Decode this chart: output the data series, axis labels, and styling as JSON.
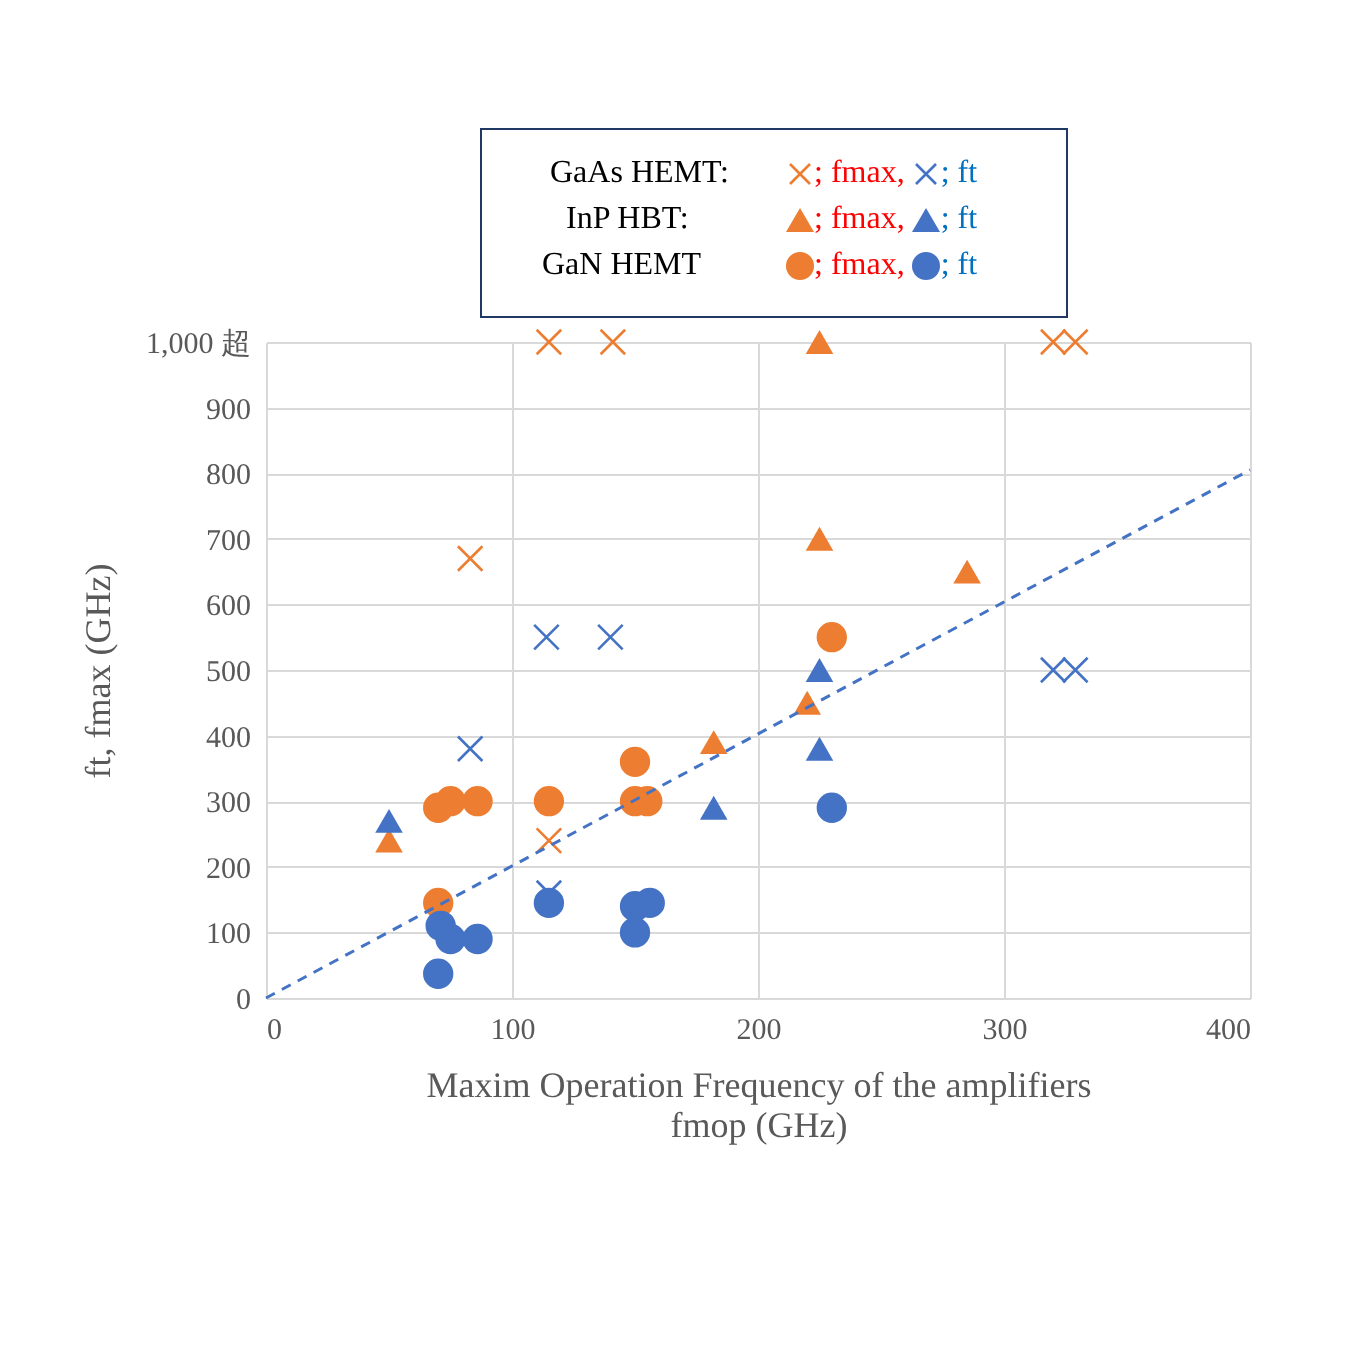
{
  "chart_data": {
    "type": "scatter",
    "xlabel": "Maxim Operation Frequency of the amplifiers\nfmop (GHz)",
    "ylabel": "ft, fmax (GHz)",
    "annotations": [
      "GaAs HEMT:",
      "InP HBT:",
      "GaN HEMT",
      "; fmax,",
      "; ft"
    ],
    "xlim": [
      0,
      400
    ],
    "xticks": [
      0,
      100,
      200,
      300,
      400
    ],
    "ylim": [
      0,
      1000
    ],
    "yticks": [
      0,
      100,
      200,
      300,
      400,
      500,
      600,
      700,
      800,
      900,
      {
        "value": 1000,
        "label": "1,000 超"
      }
    ],
    "grid": true,
    "series": [
      {
        "color": "#ed7d31",
        "marker": "cross",
        "x": [
          115,
          141,
          83,
          115,
          320,
          329
        ],
        "values": [
          1000,
          1000,
          670,
          240,
          1000,
          1000
        ]
      },
      {
        "color": "#4472c4",
        "marker": "cross",
        "x": [
          114,
          140,
          83,
          115,
          320,
          329
        ],
        "values": [
          550,
          550,
          380,
          160,
          500,
          500
        ]
      },
      {
        "color": "#ed7d31",
        "marker": "triangle",
        "x": [
          225,
          225,
          285,
          220,
          182,
          50
        ],
        "values": [
          1000,
          700,
          650,
          450,
          390,
          240
        ]
      },
      {
        "color": "#4472c4",
        "marker": "triangle",
        "x": [
          225,
          225,
          182,
          50
        ],
        "values": [
          500,
          380,
          290,
          270
        ]
      },
      {
        "color": "#ed7d31",
        "marker": "circle",
        "x": [
          230,
          150,
          150,
          155,
          115,
          70,
          75,
          86,
          70
        ],
        "values": [
          550,
          360,
          300,
          300,
          300,
          290,
          300,
          300,
          145
        ]
      },
      {
        "color": "#4472c4",
        "marker": "circle",
        "x": [
          71,
          75,
          86,
          70,
          115,
          150,
          156,
          150,
          230
        ],
        "values": [
          110,
          90,
          90,
          37,
          145,
          140,
          145,
          100,
          290
        ]
      },
      {
        "type": "line",
        "color": "#4472c4",
        "line_style": "dashed",
        "x": [
          0,
          400
        ],
        "values": [
          0,
          805
        ]
      }
    ]
  }
}
